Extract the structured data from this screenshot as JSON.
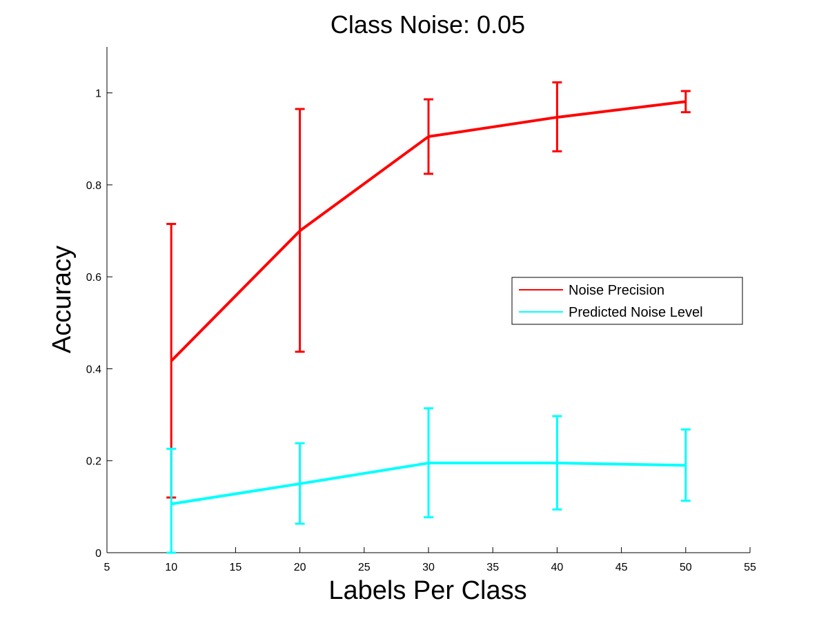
{
  "chart_data": {
    "type": "line",
    "title": "Class Noise: 0.05",
    "xlabel": "Labels Per Class",
    "ylabel": "Accuracy",
    "xlim": [
      5,
      55
    ],
    "ylim": [
      0,
      1.1
    ],
    "xticks": [
      5,
      10,
      15,
      20,
      25,
      30,
      35,
      40,
      45,
      50,
      55
    ],
    "yticks": [
      0,
      0.2,
      0.4,
      0.6,
      0.8,
      1
    ],
    "ytick_labels": [
      "0",
      "0.2",
      "0.4",
      "0.6",
      "0.8",
      "1"
    ],
    "grid": false,
    "legend_position": "right",
    "x": [
      10,
      20,
      30,
      40,
      50
    ],
    "series": [
      {
        "name": "Noise Precision",
        "color": "#ff0000",
        "values": [
          0.417,
          0.7,
          0.905,
          0.947,
          0.981
        ],
        "err_low": [
          0.12,
          0.437,
          0.824,
          0.873,
          0.958
        ],
        "err_high": [
          0.715,
          0.965,
          0.986,
          1.023,
          1.004
        ]
      },
      {
        "name": "Predicted Noise Level",
        "color": "#00ffff",
        "values": [
          0.106,
          0.15,
          0.195,
          0.195,
          0.19
        ],
        "err_low": [
          0.0,
          0.063,
          0.077,
          0.094,
          0.113
        ],
        "err_high": [
          0.226,
          0.238,
          0.314,
          0.297,
          0.268
        ]
      }
    ]
  }
}
